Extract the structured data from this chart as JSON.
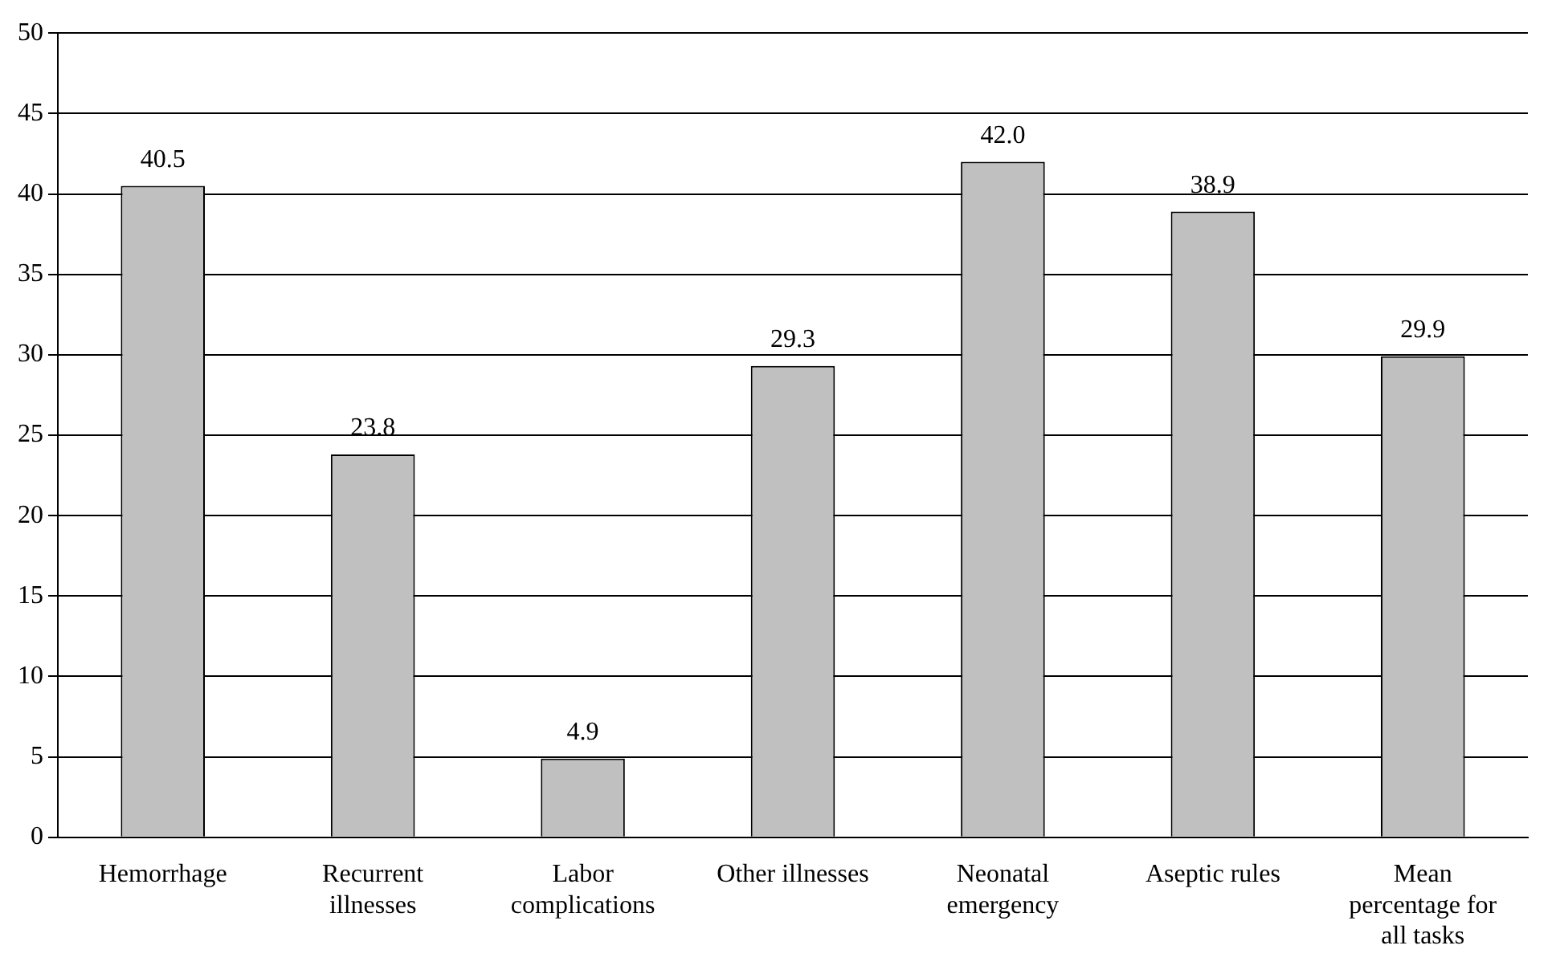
{
  "chart_data": {
    "type": "bar",
    "categories": [
      "Hemorrhage",
      "Recurrent illnesses",
      "Labor complications",
      "Other illnesses",
      "Neonatal emergency",
      "Aseptic rules",
      "Mean percentage for all tasks"
    ],
    "values": [
      40.5,
      23.8,
      4.9,
      29.3,
      42.0,
      38.9,
      29.9
    ],
    "value_labels": [
      "40.5",
      "23.8",
      "4.9",
      "29.3",
      "42.0",
      "38.9",
      "29.9"
    ],
    "color": "#c0c0c0",
    "ylim": [
      0,
      50
    ],
    "yticks": [
      0,
      5,
      10,
      15,
      20,
      25,
      30,
      35,
      40,
      45,
      50
    ],
    "grid": "y",
    "legend": false
  }
}
